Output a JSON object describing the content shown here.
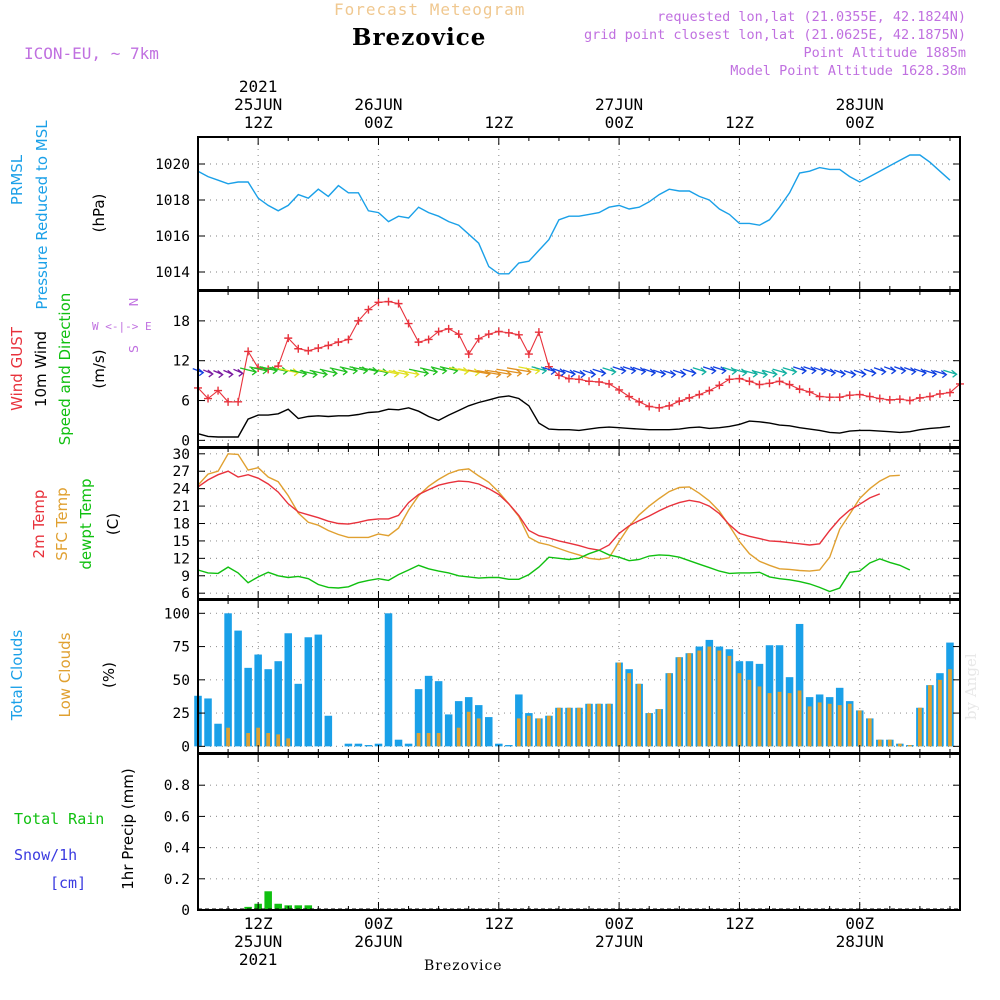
{
  "header": {
    "forecast_title": "Forecast Meteogram",
    "station": "Brezovice",
    "model": "ICON-EU, ~ 7km",
    "requested": "requested lon,lat (21.0355E, 42.1824N)",
    "gridpoint": "grid point closest lon,lat (21.0625E, 42.1875N)",
    "point_alt": "Point Altitude 1885m",
    "model_alt": "Model Point Altitude 1628.38m",
    "watermark": "by Angel",
    "bottom_station": "Brezovice"
  },
  "colors": {
    "blue": "#1aa0e8",
    "red": "#e8323c",
    "orange": "#e0a030",
    "green": "#10c010",
    "violet": "#c070e0",
    "snow": "#3a3ae0"
  },
  "chart_data": {
    "type": "line",
    "time_axis": {
      "top_labels": [
        {
          "lines": [
            "2021",
            "25JUN",
            "12Z"
          ],
          "hour": 12
        },
        {
          "lines": [
            "26JUN",
            "00Z"
          ],
          "hour": 24
        },
        {
          "lines": [
            "12Z"
          ],
          "hour": 36
        },
        {
          "lines": [
            "27JUN",
            "00Z"
          ],
          "hour": 48
        },
        {
          "lines": [
            "12Z"
          ],
          "hour": 60
        },
        {
          "lines": [
            "28JUN",
            "00Z"
          ],
          "hour": 72
        }
      ],
      "bottom_labels": [
        {
          "lines": [
            "12Z",
            "25JUN",
            "2021"
          ],
          "hour": 12
        },
        {
          "lines": [
            "00Z",
            "26JUN"
          ],
          "hour": 24
        },
        {
          "lines": [
            "12Z"
          ],
          "hour": 36
        },
        {
          "lines": [
            "00Z",
            "27JUN"
          ],
          "hour": 48
        },
        {
          "lines": [
            "12Z"
          ],
          "hour": 60
        },
        {
          "lines": [
            "00Z",
            "28JUN"
          ],
          "hour": 72
        }
      ],
      "range_hours": [
        6,
        82
      ]
    },
    "pressure": {
      "labels": [
        "PRMSL",
        "Pressure Reduced to MSL",
        "(hPa)"
      ],
      "ylim": [
        1013,
        1021.5
      ],
      "ticks": [
        1014,
        1016,
        1018,
        1020
      ],
      "values": [
        1019.6,
        1019.3,
        1019.1,
        1018.9,
        1019.0,
        1019.0,
        1018.1,
        1017.7,
        1017.4,
        1017.7,
        1018.3,
        1018.1,
        1018.6,
        1018.2,
        1018.8,
        1018.4,
        1018.4,
        1017.4,
        1017.3,
        1016.8,
        1017.1,
        1017.0,
        1017.6,
        1017.3,
        1017.1,
        1016.8,
        1016.6,
        1016.1,
        1015.6,
        1014.3,
        1013.9,
        1013.9,
        1014.5,
        1014.6,
        1015.2,
        1015.8,
        1016.9,
        1017.1,
        1017.1,
        1017.2,
        1017.3,
        1017.6,
        1017.7,
        1017.5,
        1017.6,
        1017.9,
        1018.3,
        1018.6,
        1018.5,
        1018.5,
        1018.2,
        1018.0,
        1017.5,
        1017.2,
        1016.7,
        1016.7,
        1016.6,
        1016.9,
        1017.6,
        1018.4,
        1019.5,
        1019.6,
        1019.8,
        1019.7,
        1019.7,
        1019.3,
        1019.0,
        1019.3,
        1019.6,
        1019.9,
        1020.2,
        1020.5,
        1020.5,
        1020.1,
        1019.6,
        1019.1
      ]
    },
    "wind": {
      "labels": [
        "Wind GUST",
        "10m Wind",
        "Speed and Direction",
        "(m/s)"
      ],
      "compass": [
        "N",
        "W <-|-> E",
        "S"
      ],
      "ylim": [
        -1,
        22.5
      ],
      "ticks": [
        0,
        6,
        12,
        18
      ],
      "speed": [
        1.0,
        0.6,
        0.5,
        0.5,
        0.5,
        3.2,
        3.8,
        3.8,
        4.0,
        4.7,
        3.3,
        3.6,
        3.7,
        3.6,
        3.7,
        3.7,
        3.9,
        4.2,
        4.3,
        4.7,
        4.6,
        4.9,
        4.4,
        3.6,
        3.0,
        3.8,
        4.5,
        5.2,
        5.7,
        6.1,
        6.5,
        6.7,
        6.3,
        5.2,
        2.6,
        1.7,
        1.6,
        1.6,
        1.5,
        1.7,
        1.9,
        2.0,
        1.9,
        1.8,
        1.7,
        1.6,
        1.6,
        1.6,
        1.7,
        1.9,
        2.0,
        1.8,
        1.9,
        2.1,
        2.4,
        2.9,
        2.8,
        2.6,
        2.3,
        2.2,
        1.9,
        1.7,
        1.5,
        1.2,
        1.1,
        1.4,
        1.5,
        1.5,
        1.4,
        1.3,
        1.2,
        1.3,
        1.6,
        1.8,
        1.9,
        2.1
      ],
      "gust": [
        7.9,
        6.3,
        7.5,
        5.8,
        5.8,
        13.4,
        10.9,
        10.7,
        11.2,
        15.4,
        13.8,
        13.5,
        13.9,
        14.3,
        14.8,
        15.2,
        18.0,
        19.7,
        20.8,
        20.9,
        20.6,
        17.6,
        14.8,
        15.2,
        16.4,
        16.8,
        16.0,
        13.0,
        15.3,
        16.0,
        16.4,
        16.2,
        15.9,
        13.0,
        16.3,
        11.1,
        9.8,
        9.3,
        9.2,
        8.9,
        8.8,
        8.5,
        7.6,
        6.6,
        5.8,
        5.1,
        4.9,
        5.2,
        5.9,
        6.4,
        6.9,
        7.5,
        8.3,
        9.2,
        9.3,
        8.9,
        8.4,
        8.6,
        8.9,
        8.4,
        7.7,
        7.3,
        6.6,
        6.5,
        6.5,
        6.8,
        6.9,
        6.6,
        6.3,
        6.1,
        6.2,
        6.0,
        6.4,
        6.6,
        7.0,
        7.2,
        8.5
      ],
      "arrow_color_scale": [
        "#7a1aa0",
        "#1040e0",
        "#10b0a0",
        "#20c020",
        "#e0e020",
        "#e09020"
      ]
    },
    "temperature": {
      "labels": [
        "2m Temp",
        "SFC Temp",
        "dewpt Temp",
        "(C)"
      ],
      "ylim": [
        5,
        31
      ],
      "ticks": [
        6,
        9,
        12,
        15,
        18,
        21,
        24,
        27,
        30
      ],
      "t2m": [
        24.3,
        25.5,
        26.4,
        27.0,
        26.0,
        26.4,
        25.8,
        24.8,
        23.4,
        21.4,
        20.0,
        19.5,
        19.0,
        18.4,
        18.0,
        17.9,
        18.2,
        18.6,
        18.8,
        18.8,
        19.4,
        21.6,
        23.0,
        23.8,
        24.6,
        25.0,
        25.3,
        25.2,
        24.8,
        24.0,
        23.0,
        21.4,
        19.4,
        16.8,
        15.9,
        15.5,
        15.0,
        14.6,
        14.2,
        13.7,
        13.4,
        14.3,
        16.3,
        17.6,
        18.5,
        19.3,
        20.2,
        21.0,
        21.6,
        22.0,
        21.7,
        21.0,
        19.7,
        17.8,
        16.3,
        15.8,
        15.4,
        15.0,
        14.9,
        14.7,
        14.5,
        14.3,
        14.5,
        16.8,
        18.8,
        20.3,
        21.3,
        22.4,
        23.1
      ],
      "sfc": [
        24.6,
        26.5,
        27.0,
        30.0,
        29.9,
        27.2,
        27.6,
        26.0,
        25.2,
        22.8,
        19.8,
        18.2,
        17.7,
        16.8,
        16.1,
        15.6,
        15.6,
        15.6,
        16.2,
        15.9,
        17.2,
        20.3,
        22.8,
        24.4,
        25.6,
        26.6,
        27.2,
        27.4,
        26.2,
        25.1,
        23.4,
        21.4,
        19.2,
        15.6,
        14.7,
        14.3,
        13.7,
        13.1,
        12.6,
        12.0,
        11.8,
        12.1,
        14.9,
        17.5,
        19.5,
        21.0,
        22.3,
        23.5,
        24.2,
        24.3,
        23.2,
        21.9,
        20.1,
        17.6,
        14.9,
        12.8,
        11.5,
        10.8,
        10.2,
        10.1,
        9.9,
        9.8,
        10.0,
        12.2,
        17.0,
        19.6,
        22.3,
        24.0,
        25.3,
        26.2,
        26.3
      ],
      "dewpt": [
        10.0,
        9.5,
        9.4,
        10.5,
        9.5,
        7.8,
        8.8,
        9.6,
        9.0,
        8.7,
        8.9,
        8.5,
        7.5,
        7.0,
        6.9,
        7.1,
        7.8,
        8.2,
        8.5,
        8.2,
        9.2,
        10.0,
        10.8,
        10.2,
        9.8,
        9.5,
        9.0,
        8.8,
        8.6,
        8.7,
        8.7,
        8.4,
        8.4,
        9.2,
        10.5,
        12.2,
        12.0,
        11.8,
        12.0,
        12.8,
        13.4,
        12.6,
        12.2,
        11.6,
        11.8,
        12.4,
        12.6,
        12.5,
        12.2,
        11.6,
        11.0,
        10.4,
        9.8,
        9.4,
        9.5,
        9.5,
        9.6,
        8.8,
        8.5,
        8.3,
        8.0,
        7.6,
        7.0,
        6.3,
        6.9,
        9.6,
        9.8,
        11.2,
        11.9,
        11.3,
        10.8,
        10.0
      ]
    },
    "clouds": {
      "labels": [
        "Total Clouds",
        "Low Clouds",
        "(%)"
      ],
      "ylim": [
        -5,
        110
      ],
      "ticks": [
        0,
        25,
        50,
        75,
        100
      ],
      "total": [
        38,
        36,
        17,
        100,
        87,
        59,
        69,
        58,
        64,
        85,
        47,
        82,
        84,
        23,
        0,
        2,
        2,
        1,
        2,
        100,
        5,
        2,
        43,
        53,
        49,
        24,
        34,
        37,
        31,
        22,
        2,
        1,
        39,
        25,
        21,
        23,
        29,
        29,
        29,
        32,
        32,
        32,
        63,
        58,
        47,
        25,
        28,
        55,
        67,
        70,
        75,
        80,
        75,
        73,
        64,
        64,
        62,
        76,
        76,
        52,
        92,
        37,
        39,
        37,
        44,
        34,
        27,
        21,
        5,
        5,
        2,
        1,
        29,
        46,
        55,
        78
      ],
      "low": [
        0,
        0,
        0,
        14,
        0,
        10,
        14,
        10,
        9,
        6,
        0,
        0,
        0,
        0,
        0,
        0,
        0,
        0,
        0,
        0,
        0,
        0,
        10,
        10,
        10,
        0,
        14,
        26,
        21,
        0,
        0,
        0,
        21,
        23,
        21,
        23,
        29,
        29,
        29,
        32,
        32,
        32,
        63,
        55,
        47,
        25,
        28,
        55,
        67,
        70,
        72,
        75,
        72,
        68,
        55,
        50,
        45,
        40,
        41,
        40,
        42,
        30,
        33,
        32,
        31,
        32,
        27,
        21,
        5,
        5,
        2,
        1,
        29,
        46,
        50,
        58
      ]
    },
    "precip": {
      "labels": [
        "Total Rain",
        "Snow/1h",
        "[cm]",
        "1hr Precip (mm)"
      ],
      "ylim": [
        0,
        1.0
      ],
      "ticks": [
        0,
        0.2,
        0.4,
        0.6,
        0.8
      ],
      "rain": [
        0,
        0,
        0,
        0,
        0,
        0.02,
        0.04,
        0.12,
        0.04,
        0.03,
        0.03,
        0.03,
        0,
        0,
        0,
        0,
        0,
        0,
        0,
        0,
        0,
        0,
        0,
        0,
        0,
        0,
        0,
        0,
        0,
        0,
        0,
        0,
        0,
        0,
        0,
        0,
        0,
        0,
        0,
        0,
        0,
        0,
        0,
        0,
        0,
        0,
        0,
        0,
        0,
        0,
        0,
        0,
        0,
        0,
        0,
        0,
        0,
        0,
        0,
        0,
        0,
        0,
        0,
        0,
        0,
        0,
        0,
        0,
        0,
        0,
        0,
        0,
        0,
        0,
        0,
        0
      ]
    }
  }
}
